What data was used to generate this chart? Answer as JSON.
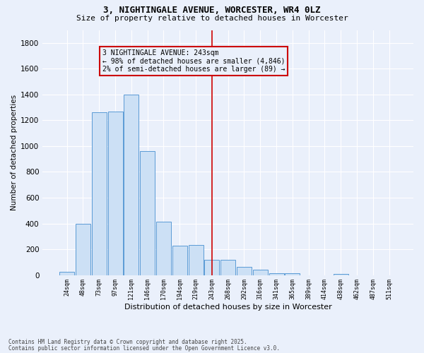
{
  "title": "3, NIGHTINGALE AVENUE, WORCESTER, WR4 0LZ",
  "subtitle": "Size of property relative to detached houses in Worcester",
  "xlabel": "Distribution of detached houses by size in Worcester",
  "ylabel": "Number of detached properties",
  "footnote1": "Contains HM Land Registry data © Crown copyright and database right 2025.",
  "footnote2": "Contains public sector information licensed under the Open Government Licence v3.0.",
  "categories": [
    "24sqm",
    "48sqm",
    "73sqm",
    "97sqm",
    "121sqm",
    "146sqm",
    "170sqm",
    "194sqm",
    "219sqm",
    "243sqm",
    "268sqm",
    "292sqm",
    "316sqm",
    "341sqm",
    "365sqm",
    "389sqm",
    "414sqm",
    "438sqm",
    "462sqm",
    "487sqm",
    "511sqm"
  ],
  "values": [
    25,
    400,
    1260,
    1270,
    1400,
    960,
    415,
    230,
    235,
    120,
    120,
    65,
    40,
    15,
    15,
    0,
    0,
    10,
    0,
    0,
    0
  ],
  "bar_color": "#cce0f5",
  "bar_edge_color": "#5b9bd5",
  "vline_index": 9,
  "vline_color": "#cc0000",
  "annotation_line1": "3 NIGHTINGALE AVENUE: 243sqm",
  "annotation_line2": "← 98% of detached houses are smaller (4,846)",
  "annotation_line3": "2% of semi-detached houses are larger (89) →",
  "background_color": "#eaf0fb",
  "grid_color": "#ffffff",
  "ylim": [
    0,
    1900
  ],
  "yticks": [
    0,
    200,
    400,
    600,
    800,
    1000,
    1200,
    1400,
    1600,
    1800
  ],
  "title_fontsize": 9,
  "subtitle_fontsize": 8,
  "annotation_fontsize": 7,
  "xlabel_fontsize": 8,
  "ylabel_fontsize": 7.5,
  "xtick_fontsize": 6,
  "ytick_fontsize": 7.5
}
